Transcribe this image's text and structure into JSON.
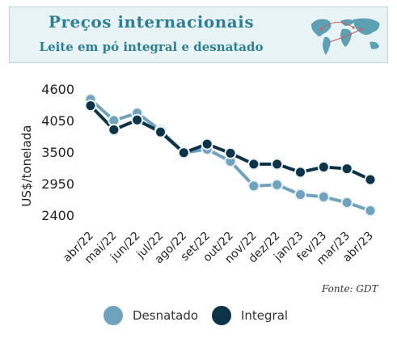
{
  "header": {
    "title": "Preços internacionais",
    "subtitle": "Leite em pó integral e desnatado"
  },
  "source": "Fonte: GDT",
  "colors": {
    "desnatado": "#6fa3bd",
    "integral": "#0c3347",
    "header_bg": "#e8f3f5",
    "title": "#2f7f93"
  },
  "map_icon": "world-map-icon",
  "chart_data": {
    "type": "line",
    "title": "",
    "xlabel": "",
    "ylabel": "US$/tonelada",
    "categories": [
      "abr/22",
      "mai/22",
      "jun/22",
      "jul/22",
      "ago/22",
      "set/22",
      "out/22",
      "nov/22",
      "dez/22",
      "jan/23",
      "fev/23",
      "mar/23",
      "abr/23"
    ],
    "yticks": [
      4600,
      4050,
      3500,
      2950,
      2400
    ],
    "ylim": [
      2400,
      4600
    ],
    "grid": false,
    "legend_position": "bottom",
    "series": [
      {
        "name": "Desnatado",
        "values": [
          4420,
          4050,
          4180,
          3880,
          3490,
          3550,
          3340,
          2910,
          2930,
          2760,
          2720,
          2620,
          2480
        ]
      },
      {
        "name": "Integral",
        "values": [
          4310,
          3890,
          4060,
          3850,
          3490,
          3640,
          3480,
          3290,
          3290,
          3150,
          3240,
          3210,
          3020
        ]
      }
    ]
  }
}
